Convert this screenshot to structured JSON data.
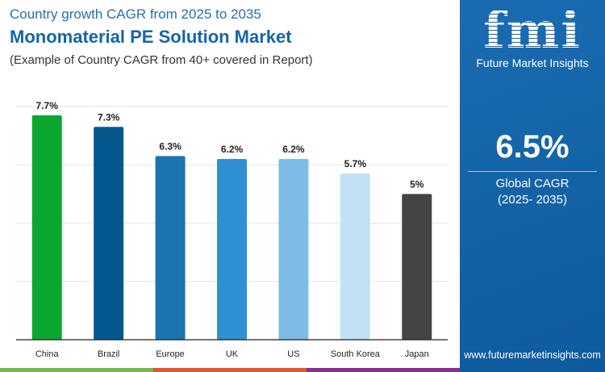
{
  "header": {
    "subtitle_top": "Country growth CAGR from 2025 to 2035",
    "title": "Monomaterial PE Solution Market",
    "note": "(Example of Country CAGR from 40+ covered in Report)"
  },
  "panel": {
    "logo_text": "fmi",
    "logo_sub": "Future Market Insights",
    "cagr_value": "6.5%",
    "cagr_label": "Global CAGR",
    "cagr_period": "(2025- 2035)",
    "url": "www.futuremarketinsights.com"
  },
  "colors": {
    "panel": "#1565a8",
    "strip": [
      "#7ab648",
      "#e0592a",
      "#8a2f8c"
    ]
  },
  "chart_data": {
    "type": "bar",
    "categories": [
      "China",
      "Brazil",
      "Europe",
      "UK",
      "US",
      "South Korea",
      "Japan"
    ],
    "values": [
      7.7,
      7.3,
      6.3,
      6.2,
      6.2,
      5.7,
      5
    ],
    "data_labels": [
      "7.7%",
      "7.3%",
      "6.3%",
      "6.2%",
      "6.2%",
      "5.7%",
      "5%"
    ],
    "colors": [
      "#0aa82e",
      "#04588f",
      "#1b74ae",
      "#2e92d2",
      "#7dbce6",
      "#c3e1f4",
      "#444444"
    ],
    "ylim": [
      0,
      8
    ],
    "grid": true,
    "xlabel": "",
    "ylabel": ""
  }
}
